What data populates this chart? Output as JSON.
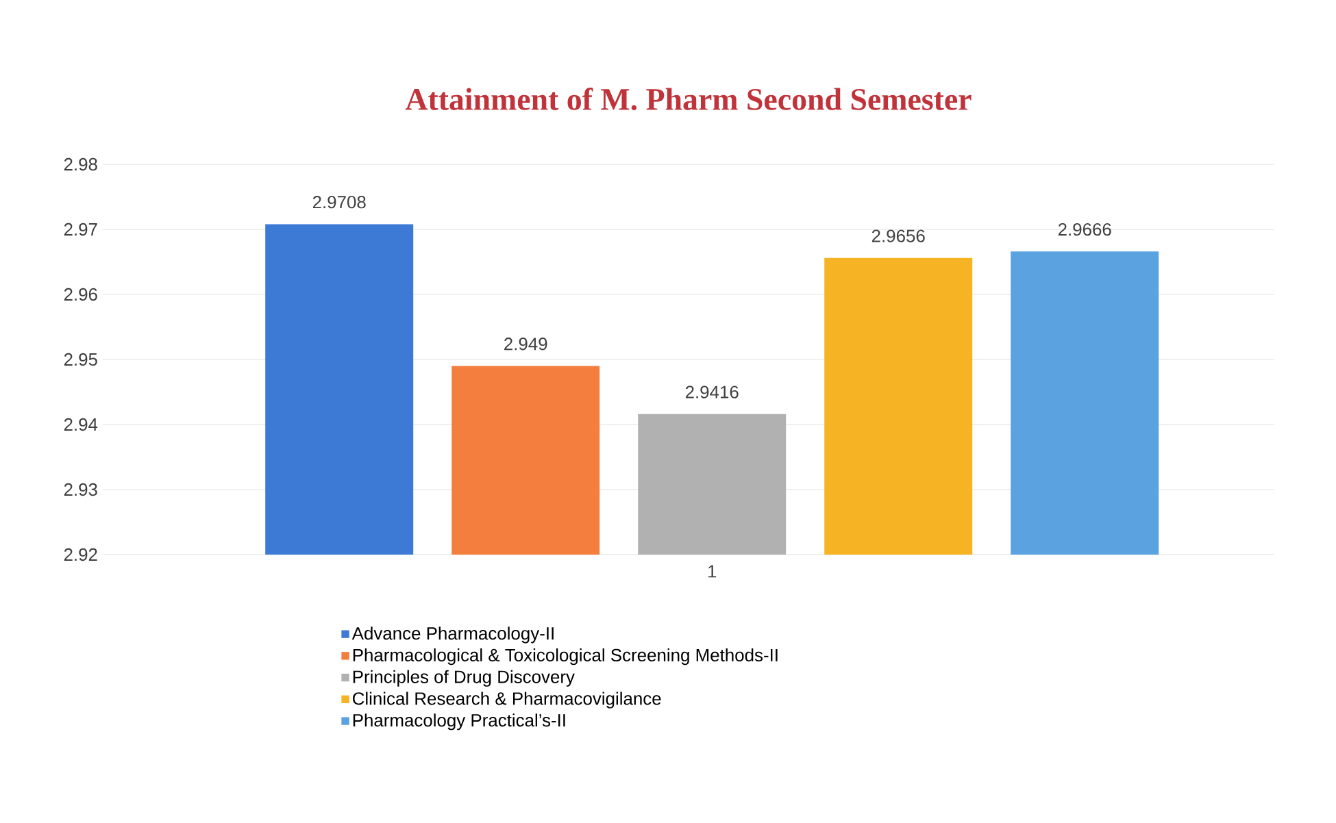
{
  "chart_data": {
    "type": "bar",
    "title": "Attainment of M. Pharm Second Semester",
    "categories": [
      "1"
    ],
    "series": [
      {
        "name": "Advance Pharmacology-II",
        "color": "#3d7ad6",
        "values": [
          2.9708
        ]
      },
      {
        "name": "Pharmacological & Toxicological Screening Methods-II",
        "color": "#f47e3e",
        "values": [
          2.949
        ]
      },
      {
        "name": "Principles of Drug Discovery",
        "color": "#b1b1b1",
        "values": [
          2.9416
        ]
      },
      {
        "name": "Clinical Research & Pharmacovigilance",
        "color": "#f6b324",
        "values": [
          2.9656
        ]
      },
      {
        "name": "Pharmacology Practical’s-II",
        "color": "#5aa2e0",
        "values": [
          2.9666
        ]
      }
    ],
    "ylim": [
      2.92,
      2.98
    ],
    "yticks": [
      2.92,
      2.93,
      2.94,
      2.95,
      2.96,
      2.97,
      2.98
    ],
    "grid": "y",
    "legend": "bottom",
    "data_labels": true
  }
}
